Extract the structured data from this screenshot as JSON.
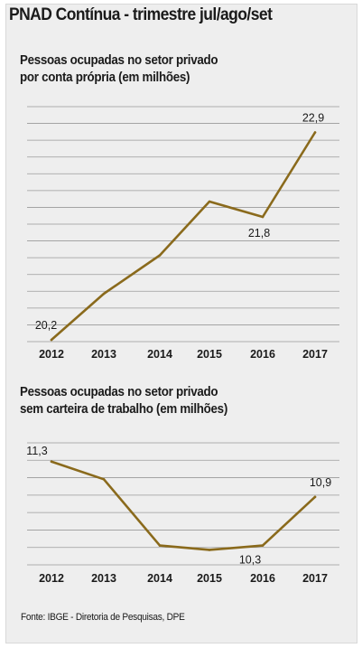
{
  "title": "PNAD Contínua - trimestre jul/ago/set",
  "footer": "Fonte: IBGE - Diretoria de Pesquisas, DPE",
  "colors": {
    "line": "#8a6a1c",
    "grid": "#9a9a9a",
    "background": "#eeeeee"
  },
  "chart_data": [
    {
      "type": "line",
      "title_lines": [
        "Pessoas ocupadas no setor privado",
        "por conta própria (em milhões)"
      ],
      "categories": [
        "2012",
        "2013",
        "2014",
        "2015",
        "2016",
        "2017"
      ],
      "values": [
        20.2,
        20.8,
        21.3,
        22.0,
        21.8,
        22.9
      ],
      "value_labels": [
        "20,2",
        null,
        null,
        null,
        "21,8",
        "22,9"
      ],
      "ylim": [
        20.2,
        23.0
      ],
      "grid": true,
      "line_color": "#8a6a1c"
    },
    {
      "type": "line",
      "title_lines": [
        "Pessoas ocupadas no setor privado",
        "sem carteira de trabalho (em milhões)"
      ],
      "categories": [
        "2012",
        "2013",
        "2014",
        "2015",
        "2016",
        "2017"
      ],
      "values": [
        11.3,
        11.1,
        10.35,
        10.3,
        10.35,
        10.9
      ],
      "value_labels": [
        "11,3",
        null,
        null,
        null,
        "10,3",
        "10,9"
      ],
      "ylim": [
        10.1,
        11.4
      ],
      "grid": true,
      "line_color": "#8a6a1c"
    }
  ]
}
